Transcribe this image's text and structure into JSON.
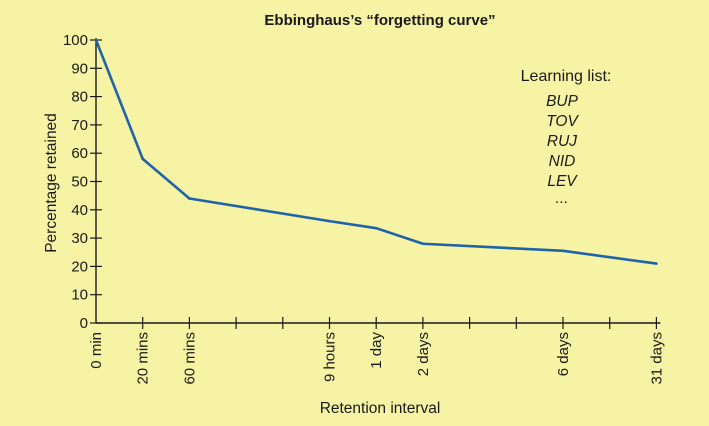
{
  "chart_data": {
    "type": "line",
    "title": "Ebbinghaus’s “forgetting curve”",
    "xlabel": "Retention interval",
    "ylabel": "Percentage retained",
    "ylim": [
      0,
      100
    ],
    "yticks": [
      "0",
      "10",
      "20",
      "30",
      "40",
      "50",
      "60",
      "70",
      "80",
      "90",
      "100"
    ],
    "x_tick_count": 13,
    "x_labels": [
      {
        "tick": 0,
        "label": "0 min"
      },
      {
        "tick": 1,
        "label": "20 mins"
      },
      {
        "tick": 2,
        "label": "60 mins"
      },
      {
        "tick": 5,
        "label": "9 hours"
      },
      {
        "tick": 6,
        "label": "1 day"
      },
      {
        "tick": 7,
        "label": "2 days"
      },
      {
        "tick": 10,
        "label": "6 days"
      },
      {
        "tick": 12,
        "label": "31 days"
      }
    ],
    "series": [
      {
        "color": "#1f63a8",
        "points": [
          {
            "x": "0 min",
            "y": 100
          },
          {
            "x": "20 mins",
            "y": 58
          },
          {
            "x": "60 mins",
            "y": 44
          },
          {
            "x": "9 hours",
            "y": 36
          },
          {
            "x": "1 day",
            "y": 33.5
          },
          {
            "x": "2 days",
            "y": 28
          },
          {
            "x": "6 days",
            "y": 25.5
          },
          {
            "x": "31 days",
            "y": 21
          }
        ]
      }
    ],
    "grid": false,
    "annotation": {
      "heading": "Learning list:",
      "items": [
        "BUP",
        "TOV",
        "RUJ",
        "NID",
        "LEV",
        "..."
      ]
    }
  },
  "colors": {
    "background": "#f7f3a4",
    "line": "#1f63a8",
    "text": "#1a1a1a"
  }
}
